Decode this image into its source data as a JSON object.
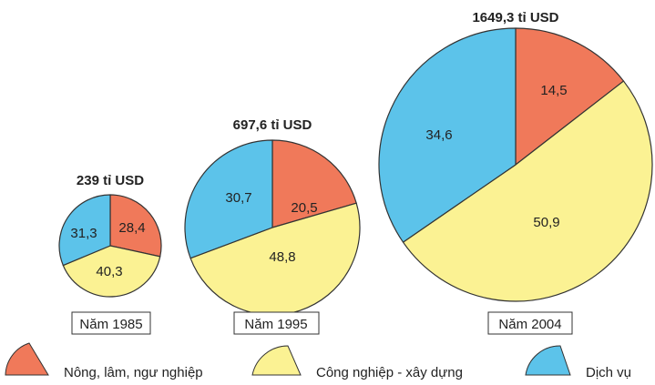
{
  "chart_data": {
    "type": "pie",
    "categories": [
      "Nông, lâm, ngư nghiệp",
      "Công nghiệp - xây dựng",
      "Dịch vụ"
    ],
    "colors": [
      "#f0795a",
      "#fbf293",
      "#5cc3ea"
    ],
    "pies": [
      {
        "year_label": "Năm 1985",
        "total": "239 tỉ USD",
        "values": [
          28.4,
          40.3,
          31.3
        ],
        "labels": [
          "28,4",
          "40,3",
          "31,3"
        ]
      },
      {
        "year_label": "Năm 1995",
        "total": "697,6 tỉ USD",
        "values": [
          20.5,
          48.8,
          30.7
        ],
        "labels": [
          "20,5",
          "48,8",
          "30,7"
        ]
      },
      {
        "year_label": "Năm 2004",
        "total": "1649,3 tỉ USD",
        "values": [
          14.5,
          50.9,
          34.6
        ],
        "labels": [
          "14,5",
          "50,9",
          "34,6"
        ]
      }
    ],
    "legend": {
      "placement": "bottom",
      "items": [
        {
          "label": "Nông, lâm, ngư nghiệp",
          "color": "#f0795a"
        },
        {
          "label": "Công nghiệp - xây dựng",
          "color": "#fbf293"
        },
        {
          "label": "Dịch vụ",
          "color": "#5cc3ea"
        }
      ]
    }
  }
}
